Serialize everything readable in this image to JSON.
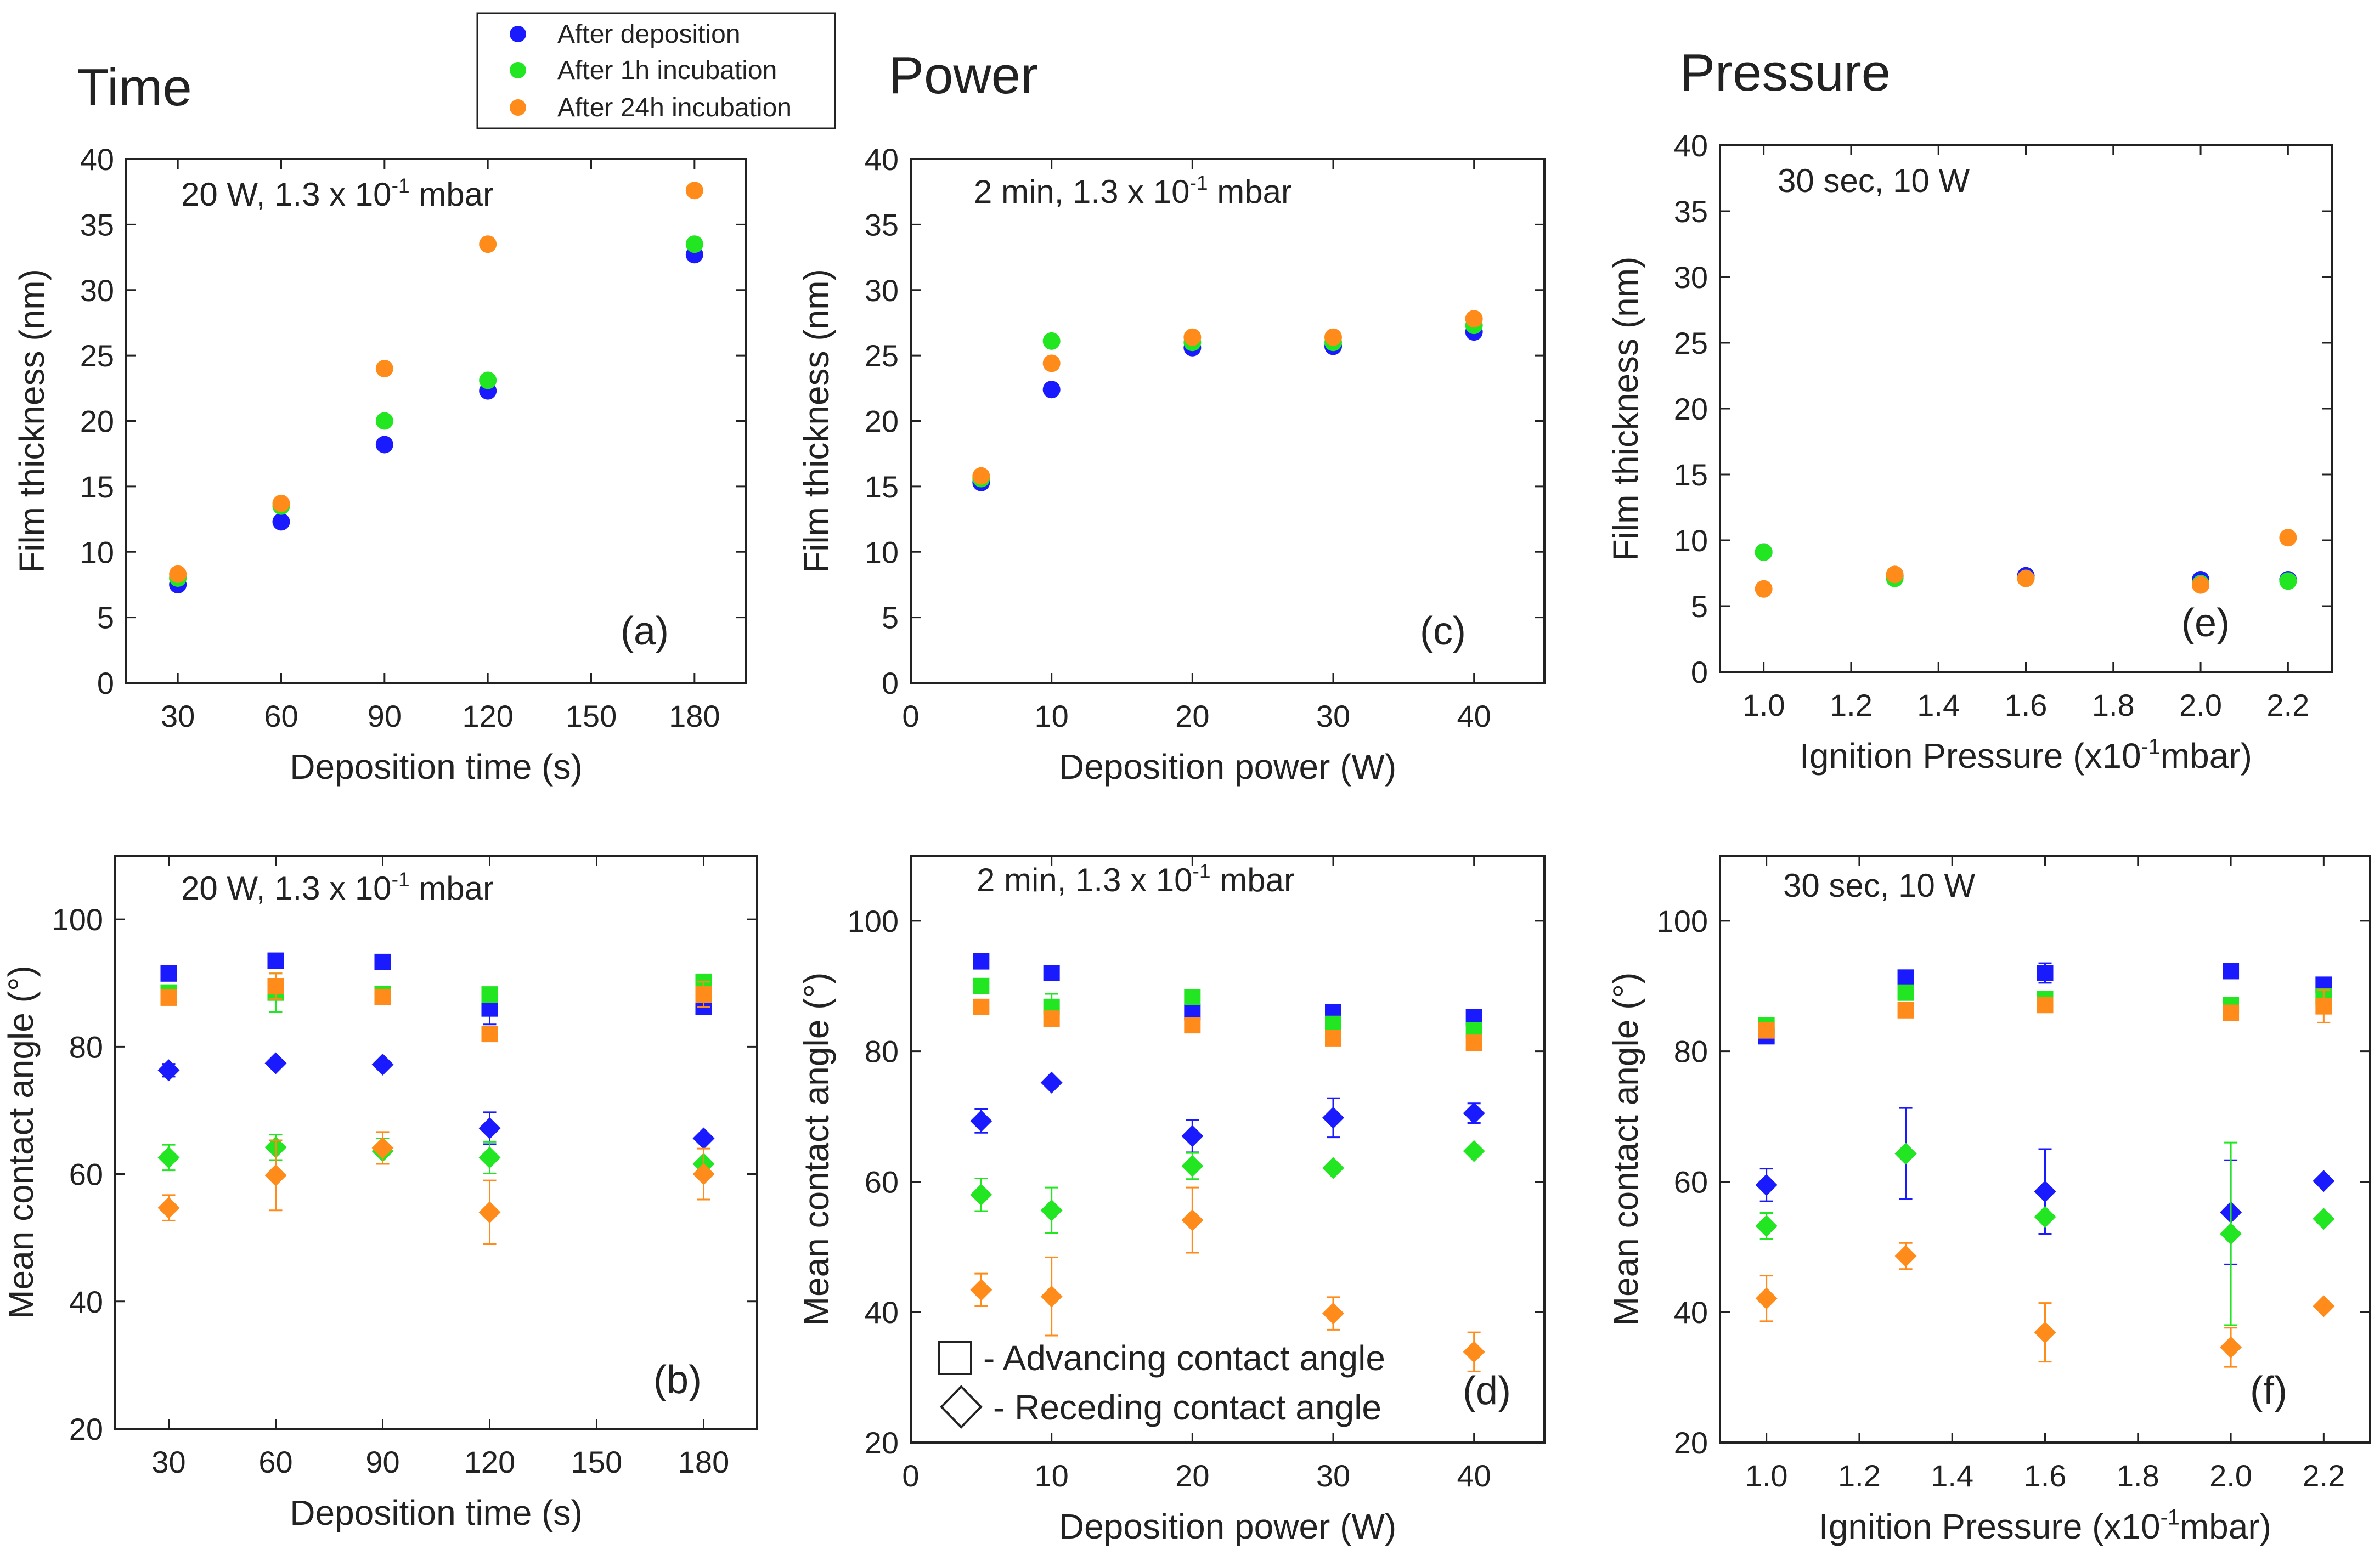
{
  "legend": {
    "entries": [
      {
        "label": "After deposition",
        "color": "#1a1aff"
      },
      {
        "label": "After 1h incubation",
        "color": "#22e622"
      },
      {
        "label": "After 24h incubation",
        "color": "#ff8c1a"
      }
    ]
  },
  "column_titles": [
    "Time",
    "Power",
    "Pressure"
  ],
  "marker_legend": {
    "advancing": "- Advancing contact angle",
    "receding": "- Receding contact angle"
  },
  "chart_data": [
    {
      "id": "a",
      "type": "scatter",
      "panel_label": "(a)",
      "annotation": "20 W, 1.3 x 10",
      "annotation_sup": "-1",
      "annotation_tail": " mbar",
      "xlabel": "Deposition time (s)",
      "ylabel": "Film thickness (nm)",
      "xlim": [
        15,
        195
      ],
      "ylim": [
        0,
        40
      ],
      "xticks": [
        30,
        60,
        90,
        120,
        150,
        180
      ],
      "yticks": [
        0,
        5,
        10,
        15,
        20,
        25,
        30,
        35,
        40
      ],
      "x": [
        30,
        60,
        90,
        120,
        180
      ],
      "series": [
        {
          "values": [
            7.5,
            12.3,
            18.2,
            22.3,
            32.7
          ],
          "color": "#1a1aff"
        },
        {
          "values": [
            8.0,
            13.5,
            20.0,
            23.1,
            33.5
          ],
          "color": "#22e622"
        },
        {
          "values": [
            8.3,
            13.7,
            24.0,
            33.5,
            37.6
          ],
          "color": "#ff8c1a"
        }
      ]
    },
    {
      "id": "c",
      "type": "scatter",
      "panel_label": "(c)",
      "annotation": "2 min, 1.3 x 10",
      "annotation_sup": "-1",
      "annotation_tail": " mbar",
      "xlabel": "Deposition power (W)",
      "ylabel": "Film thickness (nm)",
      "xlim": [
        0,
        45
      ],
      "ylim": [
        0,
        40
      ],
      "xticks": [
        0,
        10,
        20,
        30,
        40
      ],
      "yticks": [
        0,
        5,
        10,
        15,
        20,
        25,
        30,
        35,
        40
      ],
      "x": [
        5,
        10,
        20,
        30,
        40
      ],
      "series": [
        {
          "values": [
            15.3,
            22.4,
            25.6,
            25.7,
            26.8
          ],
          "color": "#1a1aff"
        },
        {
          "values": [
            15.6,
            26.1,
            26.0,
            26.0,
            27.3
          ],
          "color": "#22e622"
        },
        {
          "values": [
            15.8,
            24.4,
            26.4,
            26.4,
            27.8
          ],
          "color": "#ff8c1a"
        }
      ]
    },
    {
      "id": "e",
      "type": "scatter",
      "panel_label": "(e)",
      "annotation": "30 sec, 10 W",
      "annotation_sup": "",
      "annotation_tail": "",
      "xlabel": "Ignition Pressure (x10",
      "xlabel_sup": "-1",
      "xlabel_tail": "mbar)",
      "ylabel": "Film thickness (nm)",
      "xlim": [
        0.9,
        2.3
      ],
      "ylim": [
        0,
        40
      ],
      "xticks": [
        "1.0",
        "1.2",
        "1.4",
        "1.6",
        "1.8",
        "2.0",
        "2.2"
      ],
      "yticks": [
        0,
        5,
        10,
        15,
        20,
        25,
        30,
        35,
        40
      ],
      "x": [
        1.0,
        1.3,
        1.6,
        2.0,
        2.2
      ],
      "series": [
        {
          "values": [
            9.1,
            7.3,
            7.3,
            7.0,
            7.0
          ],
          "color": "#1a1aff"
        },
        {
          "values": [
            9.1,
            7.1,
            7.1,
            6.7,
            6.9
          ],
          "color": "#22e622"
        },
        {
          "values": [
            6.3,
            7.4,
            7.1,
            6.6,
            10.2
          ],
          "color": "#ff8c1a"
        }
      ]
    },
    {
      "id": "b",
      "type": "scatter",
      "panel_label": "(b)",
      "annotation": "20 W, 1.3 x 10",
      "annotation_sup": "-1",
      "annotation_tail": " mbar",
      "xlabel": "Deposition time (s)",
      "ylabel": "Mean contact angle (°)",
      "xlim": [
        15,
        195
      ],
      "ylim": [
        20,
        110
      ],
      "xticks": [
        30,
        60,
        90,
        120,
        150,
        180
      ],
      "yticks": [
        20,
        40,
        60,
        80,
        100
      ],
      "x": [
        30,
        60,
        90,
        120,
        180
      ],
      "series": [
        {
          "marker": "square",
          "color": "#1a1aff",
          "values": [
            91.5,
            93.5,
            93.3,
            86,
            86.3
          ],
          "err": [
            0,
            0,
            0,
            2.5,
            0
          ]
        },
        {
          "marker": "square",
          "color": "#22e622",
          "values": [
            88.5,
            88.5,
            88.3,
            88.2,
            90.2
          ],
          "err": [
            0,
            3,
            0,
            0,
            0
          ]
        },
        {
          "marker": "square",
          "color": "#ff8c1a",
          "values": [
            87.7,
            89.5,
            87.8,
            82,
            88.2
          ],
          "err": [
            0,
            2,
            0,
            0,
            2
          ]
        },
        {
          "marker": "diamond",
          "color": "#1a1aff",
          "values": [
            76.3,
            77.4,
            77.2,
            67.2,
            65.6
          ],
          "err": [
            1,
            0,
            0,
            2.5,
            0
          ]
        },
        {
          "marker": "diamond",
          "color": "#22e622",
          "values": [
            62.6,
            64.2,
            63.6,
            62.6,
            61.6
          ],
          "err": [
            2,
            2,
            2,
            2.5,
            0
          ]
        },
        {
          "marker": "diamond",
          "color": "#ff8c1a",
          "values": [
            54.7,
            59.8,
            64.1,
            54.0,
            60.0
          ],
          "err": [
            2,
            5.5,
            2.5,
            5,
            4
          ]
        }
      ]
    },
    {
      "id": "d",
      "type": "scatter",
      "panel_label": "(d)",
      "annotation": "2 min, 1.3 x 10",
      "annotation_sup": "-1",
      "annotation_tail": " mbar",
      "xlabel": "Deposition power (W)",
      "ylabel": "Mean contact angle (°)",
      "xlim": [
        0,
        45
      ],
      "ylim": [
        20,
        110
      ],
      "xticks": [
        0,
        10,
        20,
        30,
        40
      ],
      "yticks": [
        20,
        40,
        60,
        80,
        100
      ],
      "x": [
        5,
        10,
        20,
        30,
        40
      ],
      "series": [
        {
          "marker": "square",
          "color": "#1a1aff",
          "values": [
            93.8,
            92,
            86,
            86,
            85.2
          ],
          "err": [
            0,
            0,
            0,
            0,
            0
          ]
        },
        {
          "marker": "square",
          "color": "#22e622",
          "values": [
            90,
            86.8,
            88.3,
            84.2,
            83.2
          ],
          "err": [
            0,
            2,
            0,
            0,
            0
          ]
        },
        {
          "marker": "square",
          "color": "#ff8c1a",
          "values": [
            86.8,
            85,
            84,
            82,
            81.3
          ],
          "err": [
            0,
            0,
            0,
            0,
            0
          ]
        },
        {
          "marker": "diamond",
          "color": "#1a1aff",
          "values": [
            69.3,
            75.2,
            67,
            69.8,
            70.5
          ],
          "err": [
            1.8,
            0,
            2.5,
            3,
            1.5
          ]
        },
        {
          "marker": "diamond",
          "color": "#22e622",
          "values": [
            58,
            55.6,
            62.4,
            62.1,
            64.7
          ],
          "err": [
            2.5,
            3.5,
            2,
            0,
            0
          ]
        },
        {
          "marker": "diamond",
          "color": "#ff8c1a",
          "values": [
            43.4,
            42.4,
            54.1,
            39.8,
            33.9
          ],
          "err": [
            2.5,
            6,
            5,
            2.5,
            3
          ]
        }
      ]
    },
    {
      "id": "f",
      "type": "scatter",
      "panel_label": "(f)",
      "annotation": "30 sec, 10 W",
      "annotation_sup": "",
      "annotation_tail": "",
      "xlabel": "Ignition Pressure (x10",
      "xlabel_sup": "-1",
      "xlabel_tail": "mbar)",
      "ylabel": "Mean contact angle (°)",
      "xlim": [
        0.9,
        2.3
      ],
      "ylim": [
        20,
        110
      ],
      "xticks": [
        "1.0",
        "1.2",
        "1.4",
        "1.6",
        "1.8",
        "2.0",
        "2.2"
      ],
      "yticks": [
        20,
        40,
        60,
        80,
        100
      ],
      "x": [
        1.0,
        1.3,
        1.6,
        2.0,
        2.2
      ],
      "series": [
        {
          "marker": "square",
          "color": "#1a1aff",
          "values": [
            82.3,
            91.3,
            92,
            92.3,
            90.2
          ],
          "err": [
            0,
            0,
            1.5,
            0,
            0
          ]
        },
        {
          "marker": "square",
          "color": "#22e622",
          "values": [
            84,
            89,
            88,
            87.1,
            88.4
          ],
          "err": [
            0,
            0,
            0,
            0,
            0
          ]
        },
        {
          "marker": "square",
          "color": "#ff8c1a",
          "values": [
            83.2,
            86.3,
            87.1,
            85.9,
            86.9
          ],
          "err": [
            0,
            0,
            0,
            0,
            2.5
          ]
        },
        {
          "marker": "diamond",
          "color": "#1a1aff",
          "values": [
            59.5,
            64.3,
            58.5,
            55.3,
            60.1
          ],
          "err": [
            2.5,
            7,
            6.5,
            8,
            0
          ]
        },
        {
          "marker": "diamond",
          "color": "#22e622",
          "values": [
            53.2,
            64.3,
            54.6,
            52,
            54.3
          ],
          "err": [
            2,
            0,
            0,
            14,
            0
          ]
        },
        {
          "marker": "diamond",
          "color": "#ff8c1a",
          "values": [
            42.1,
            48.6,
            36.9,
            34.6,
            40.9
          ],
          "err": [
            3.5,
            2,
            4.5,
            3,
            0
          ]
        }
      ]
    }
  ]
}
